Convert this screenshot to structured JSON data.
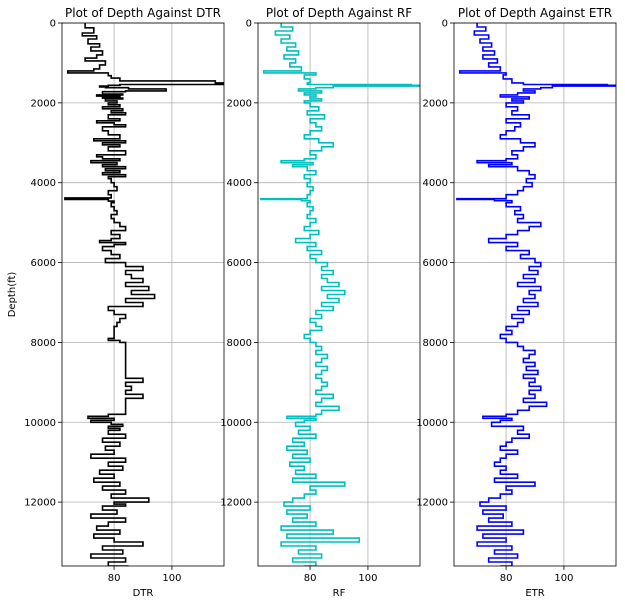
{
  "figure": {
    "ylabel": "Depth(ft)"
  },
  "chart_data": [
    {
      "type": "line",
      "title": "Plot of Depth Against DTR",
      "xlabel": "DTR",
      "ylabel": "Depth(ft)",
      "xlim": [
        62,
        118
      ],
      "ylim": [
        13600,
        0
      ],
      "x_ticks": [
        80,
        100
      ],
      "y_ticks": [
        0,
        2000,
        4000,
        6000,
        8000,
        10000,
        12000
      ],
      "grid": true,
      "color": "#000000",
      "series": [
        {
          "depth": [
            0,
            120,
            250,
            320,
            400,
            520,
            600,
            700,
            800,
            880,
            950,
            1050,
            1150,
            1200,
            1250,
            1320,
            1380,
            1450,
            1500,
            1540,
            1560,
            1580,
            1600,
            1620,
            1650,
            1700,
            1720,
            1780,
            1800,
            1830,
            1850,
            1880,
            1900,
            1950,
            2000,
            2050,
            2100,
            2150,
            2200,
            2250,
            2300,
            2400,
            2450,
            2500,
            2550,
            2600,
            2700,
            2800,
            2900,
            2950,
            3000,
            3050,
            3100,
            3200,
            3300,
            3350,
            3400,
            3450,
            3500,
            3550,
            3600,
            3650,
            3700,
            3750,
            3800,
            3850,
            3900,
            4000,
            4100,
            4200,
            4300,
            4380,
            4420,
            4460,
            4500,
            4600,
            4700,
            4800,
            4900,
            5000,
            5100,
            5200,
            5300,
            5400,
            5450,
            5500,
            5550,
            5600,
            5700,
            5800,
            5900,
            6000,
            6100,
            6200,
            6300,
            6400,
            6500,
            6600,
            6700,
            6800,
            6900,
            7000,
            7100,
            7200,
            7300,
            7400,
            7500,
            7600,
            7700,
            7800,
            7900,
            7950,
            8000,
            8100,
            8200,
            8300,
            8400,
            8500,
            8600,
            8700,
            8800,
            8900,
            9000,
            9100,
            9200,
            9300,
            9400,
            9500,
            9600,
            9700,
            9800,
            9850,
            9900,
            9950,
            10000,
            10050,
            10100,
            10150,
            10200,
            10300,
            10400,
            10500,
            10600,
            10700,
            10800,
            10900,
            11000,
            11100,
            11200,
            11300,
            11400,
            11500,
            11600,
            11700,
            11800,
            11900,
            12000,
            12050,
            12100,
            12200,
            12300,
            12400,
            12500,
            12600,
            12700,
            12800,
            12900,
            13000,
            13100,
            13200,
            13300,
            13400,
            13500,
            13600
          ],
          "values": [
            70,
            73,
            69,
            74,
            71,
            75,
            72,
            76,
            74,
            70,
            77,
            75,
            73,
            64,
            78,
            79,
            82,
            115,
            118,
            82,
            78,
            75,
            77,
            85,
            98,
            84,
            76,
            83,
            74,
            82,
            76,
            83,
            77,
            81,
            78,
            82,
            76,
            83,
            79,
            84,
            78,
            82,
            74,
            80,
            84,
            76,
            78,
            82,
            73,
            84,
            76,
            82,
            78,
            84,
            74,
            76,
            82,
            72,
            81,
            76,
            84,
            77,
            82,
            76,
            84,
            78,
            79,
            80,
            81,
            78,
            79,
            63,
            78,
            80,
            79,
            80,
            81,
            79,
            80,
            82,
            84,
            79,
            82,
            79,
            75,
            84,
            80,
            76,
            79,
            82,
            77,
            84,
            90,
            84,
            86,
            90,
            84,
            92,
            86,
            94,
            84,
            90,
            78,
            80,
            84,
            82,
            81,
            80,
            80,
            80,
            78,
            82,
            84,
            84,
            84,
            84,
            84,
            84,
            84,
            84,
            84,
            90,
            84,
            86,
            84,
            90,
            84,
            84,
            84,
            84,
            78,
            71,
            80,
            72,
            79,
            83,
            78,
            82,
            78,
            84,
            76,
            82,
            77,
            80,
            72,
            84,
            78,
            83,
            75,
            80,
            73,
            82,
            76,
            84,
            79,
            92,
            80,
            84,
            76,
            81,
            72,
            84,
            78,
            74,
            82,
            73,
            80,
            90,
            76,
            83,
            72,
            84,
            78,
            85,
            80,
            76,
            79,
            78
          ]
        }
      ]
    },
    {
      "type": "line",
      "title": "Plot of Depth Against RF",
      "xlabel": "RF",
      "ylabel": "",
      "xlim": [
        62,
        118
      ],
      "ylim": [
        13600,
        0
      ],
      "x_ticks": [
        80,
        100
      ],
      "y_ticks": [
        0,
        2000,
        4000,
        6000,
        8000,
        10000,
        12000
      ],
      "grid": true,
      "color": "#00bfbf",
      "series": [
        {
          "depth": [
            0,
            100,
            200,
            300,
            400,
            500,
            600,
            700,
            800,
            900,
            1000,
            1100,
            1200,
            1250,
            1300,
            1400,
            1500,
            1540,
            1560,
            1580,
            1620,
            1650,
            1700,
            1750,
            1800,
            1850,
            1900,
            1950,
            2000,
            2100,
            2200,
            2300,
            2400,
            2500,
            2600,
            2700,
            2800,
            2900,
            3000,
            3100,
            3200,
            3300,
            3400,
            3450,
            3500,
            3550,
            3600,
            3700,
            3800,
            3900,
            4000,
            4100,
            4200,
            4300,
            4400,
            4420,
            4450,
            4500,
            4600,
            4700,
            4800,
            4900,
            5000,
            5100,
            5200,
            5300,
            5400,
            5500,
            5600,
            5700,
            5800,
            5900,
            6000,
            6100,
            6200,
            6300,
            6400,
            6500,
            6600,
            6700,
            6800,
            6900,
            7000,
            7100,
            7200,
            7300,
            7400,
            7500,
            7600,
            7700,
            7800,
            7900,
            8000,
            8100,
            8200,
            8300,
            8400,
            8500,
            8600,
            8700,
            8800,
            8900,
            9000,
            9100,
            9200,
            9300,
            9400,
            9500,
            9600,
            9700,
            9800,
            9850,
            9900,
            9950,
            10000,
            10100,
            10200,
            10300,
            10400,
            10500,
            10600,
            10700,
            10800,
            10900,
            11000,
            11100,
            11200,
            11300,
            11400,
            11500,
            11600,
            11700,
            11800,
            11900,
            12000,
            12100,
            12200,
            12300,
            12400,
            12500,
            12600,
            12700,
            12800,
            12900,
            13000,
            13100,
            13200,
            13300,
            13400,
            13500,
            13600
          ],
          "values": [
            70,
            74,
            68,
            73,
            70,
            75,
            72,
            76,
            71,
            75,
            73,
            77,
            64,
            82,
            78,
            80,
            79,
            115,
            118,
            88,
            82,
            76,
            84,
            78,
            82,
            80,
            84,
            78,
            80,
            83,
            79,
            85,
            80,
            82,
            84,
            80,
            78,
            83,
            88,
            84,
            80,
            82,
            78,
            70,
            81,
            74,
            79,
            82,
            78,
            80,
            79,
            81,
            80,
            79,
            63,
            77,
            80,
            79,
            81,
            80,
            79,
            82,
            80,
            78,
            83,
            80,
            75,
            82,
            79,
            84,
            80,
            82,
            86,
            84,
            88,
            84,
            86,
            90,
            84,
            92,
            86,
            90,
            84,
            88,
            82,
            84,
            80,
            82,
            84,
            80,
            78,
            80,
            82,
            84,
            82,
            86,
            84,
            82,
            86,
            84,
            82,
            84,
            86,
            84,
            82,
            88,
            84,
            82,
            90,
            84,
            82,
            72,
            82,
            78,
            75,
            80,
            76,
            82,
            74,
            78,
            72,
            79,
            74,
            80,
            73,
            78,
            75,
            82,
            74,
            92,
            80,
            82,
            78,
            74,
            71,
            80,
            72,
            79,
            74,
            82,
            70,
            88,
            72,
            97,
            70,
            82,
            76,
            84,
            74,
            82,
            78
          ]
        }
      ]
    },
    {
      "type": "line",
      "title": "Plot of Depth Against ETR",
      "xlabel": "ETR",
      "ylabel": "",
      "xlim": [
        62,
        118
      ],
      "ylim": [
        13600,
        0
      ],
      "x_ticks": [
        80,
        100
      ],
      "y_ticks": [
        0,
        2000,
        4000,
        6000,
        8000,
        10000,
        12000
      ],
      "grid": true,
      "color": "#0000ff",
      "series": [
        {
          "depth": [
            0,
            100,
            200,
            300,
            400,
            500,
            600,
            700,
            800,
            900,
            1000,
            1100,
            1200,
            1250,
            1300,
            1400,
            1500,
            1540,
            1560,
            1580,
            1620,
            1650,
            1700,
            1750,
            1800,
            1850,
            1900,
            1950,
            2000,
            2100,
            2200,
            2300,
            2400,
            2500,
            2600,
            2700,
            2800,
            2900,
            3000,
            3100,
            3200,
            3300,
            3400,
            3450,
            3500,
            3550,
            3600,
            3700,
            3800,
            3900,
            4000,
            4100,
            4200,
            4300,
            4400,
            4420,
            4450,
            4500,
            4600,
            4700,
            4800,
            4900,
            5000,
            5100,
            5200,
            5300,
            5400,
            5500,
            5600,
            5700,
            5800,
            5900,
            6000,
            6100,
            6200,
            6300,
            6400,
            6500,
            6600,
            6700,
            6800,
            6900,
            7000,
            7100,
            7200,
            7300,
            7400,
            7500,
            7600,
            7700,
            7800,
            7900,
            8000,
            8100,
            8200,
            8300,
            8400,
            8500,
            8600,
            8700,
            8800,
            8900,
            9000,
            9100,
            9200,
            9300,
            9400,
            9500,
            9600,
            9700,
            9800,
            9850,
            9900,
            9950,
            10000,
            10100,
            10200,
            10300,
            10400,
            10500,
            10600,
            10700,
            10800,
            10900,
            11000,
            11100,
            11200,
            11300,
            11400,
            11500,
            11600,
            11700,
            11800,
            11900,
            12000,
            12100,
            12200,
            12300,
            12400,
            12500,
            12600,
            12700,
            12800,
            12900,
            13000,
            13100,
            13200,
            13300,
            13400,
            13500,
            13600
          ],
          "values": [
            70,
            73,
            69,
            74,
            71,
            75,
            72,
            76,
            72,
            77,
            74,
            78,
            64,
            80,
            79,
            82,
            86,
            115,
            118,
            96,
            92,
            86,
            90,
            84,
            78,
            88,
            82,
            86,
            80,
            84,
            82,
            88,
            80,
            85,
            83,
            80,
            78,
            85,
            90,
            86,
            82,
            84,
            80,
            70,
            82,
            74,
            84,
            88,
            90,
            87,
            89,
            86,
            84,
            80,
            63,
            76,
            82,
            80,
            85,
            83,
            86,
            84,
            92,
            88,
            84,
            80,
            74,
            84,
            80,
            88,
            85,
            90,
            92,
            88,
            91,
            86,
            90,
            84,
            92,
            88,
            90,
            86,
            91,
            84,
            88,
            82,
            86,
            84,
            80,
            82,
            78,
            80,
            84,
            86,
            90,
            88,
            86,
            90,
            87,
            91,
            86,
            90,
            88,
            92,
            88,
            90,
            86,
            94,
            88,
            84,
            80,
            72,
            82,
            78,
            75,
            86,
            84,
            88,
            82,
            80,
            78,
            84,
            80,
            78,
            76,
            80,
            78,
            84,
            76,
            90,
            80,
            82,
            78,
            74,
            71,
            80,
            72,
            79,
            74,
            82,
            70,
            86,
            72,
            80,
            70,
            82,
            76,
            84,
            74,
            82,
            78
          ]
        }
      ]
    }
  ]
}
